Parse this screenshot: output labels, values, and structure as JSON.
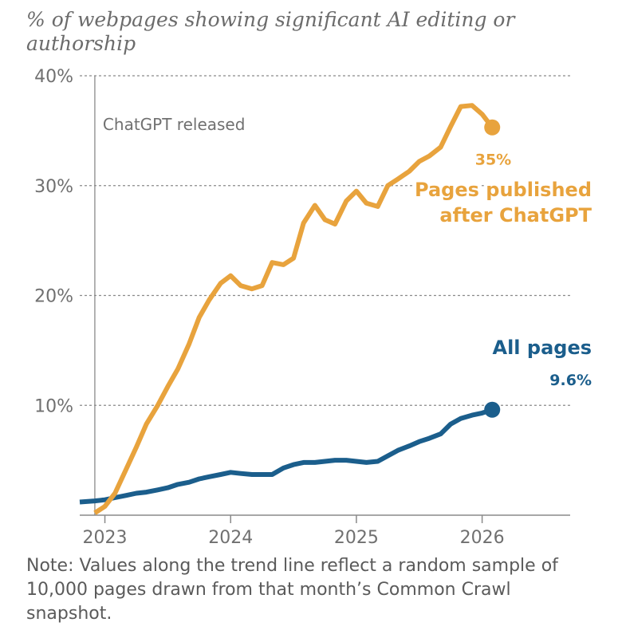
{
  "chart_data": {
    "type": "line",
    "title": "% of webpages showing significant AI editing or authorship",
    "note": "Note: Values along the trend line reflect a random sample of 10,000 pages drawn from that month’s Common Crawl snapshot.",
    "ylim": [
      0,
      40
    ],
    "y_ticks": [
      {
        "value": 10,
        "label": "10%"
      },
      {
        "value": 20,
        "label": "20%"
      },
      {
        "value": 30,
        "label": "30%"
      },
      {
        "value": 40,
        "label": "40%"
      }
    ],
    "xlim": [
      2022.8,
      2026.7
    ],
    "x_ticks": [
      {
        "value": 2023,
        "label": "2023"
      },
      {
        "value": 2024,
        "label": "2024"
      },
      {
        "value": 2025,
        "label": "2025"
      },
      {
        "value": 2026,
        "label": "2026"
      }
    ],
    "grid": true,
    "annotation": {
      "x": 2022.92,
      "label": "ChatGPT released"
    },
    "series": [
      {
        "name": "Pages published after ChatGPT",
        "color": "#E8A33D",
        "end_label": "35%",
        "points": [
          [
            2022.92,
            0.2
          ],
          [
            2023.0,
            0.8
          ],
          [
            2023.08,
            2.0
          ],
          [
            2023.17,
            4.2
          ],
          [
            2023.25,
            6.2
          ],
          [
            2023.33,
            8.3
          ],
          [
            2023.42,
            10.0
          ],
          [
            2023.5,
            11.7
          ],
          [
            2023.58,
            13.3
          ],
          [
            2023.67,
            15.6
          ],
          [
            2023.75,
            18.0
          ],
          [
            2023.83,
            19.6
          ],
          [
            2023.92,
            21.1
          ],
          [
            2024.0,
            21.8
          ],
          [
            2024.08,
            20.9
          ],
          [
            2024.17,
            20.6
          ],
          [
            2024.25,
            20.9
          ],
          [
            2024.33,
            23.0
          ],
          [
            2024.42,
            22.8
          ],
          [
            2024.5,
            23.4
          ],
          [
            2024.58,
            26.6
          ],
          [
            2024.67,
            28.2
          ],
          [
            2024.75,
            26.9
          ],
          [
            2024.83,
            26.5
          ],
          [
            2024.92,
            28.6
          ],
          [
            2025.0,
            29.5
          ],
          [
            2025.08,
            28.4
          ],
          [
            2025.17,
            28.1
          ],
          [
            2025.25,
            30.0
          ],
          [
            2025.33,
            30.6
          ],
          [
            2025.42,
            31.3
          ],
          [
            2025.5,
            32.2
          ],
          [
            2025.58,
            32.7
          ],
          [
            2025.67,
            33.5
          ],
          [
            2025.75,
            35.4
          ],
          [
            2025.83,
            37.2
          ],
          [
            2025.92,
            37.3
          ],
          [
            2026.0,
            36.5
          ],
          [
            2026.08,
            35.3
          ]
        ]
      },
      {
        "name": "All pages",
        "color": "#1B5E8C",
        "end_label": "9.6%",
        "points": [
          [
            2022.8,
            1.2
          ],
          [
            2022.92,
            1.3
          ],
          [
            2023.0,
            1.4
          ],
          [
            2023.08,
            1.6
          ],
          [
            2023.17,
            1.8
          ],
          [
            2023.25,
            2.0
          ],
          [
            2023.33,
            2.1
          ],
          [
            2023.42,
            2.3
          ],
          [
            2023.5,
            2.5
          ],
          [
            2023.58,
            2.8
          ],
          [
            2023.67,
            3.0
          ],
          [
            2023.75,
            3.3
          ],
          [
            2023.83,
            3.5
          ],
          [
            2023.92,
            3.7
          ],
          [
            2024.0,
            3.9
          ],
          [
            2024.08,
            3.8
          ],
          [
            2024.17,
            3.7
          ],
          [
            2024.25,
            3.7
          ],
          [
            2024.33,
            3.7
          ],
          [
            2024.42,
            4.3
          ],
          [
            2024.5,
            4.6
          ],
          [
            2024.58,
            4.8
          ],
          [
            2024.67,
            4.8
          ],
          [
            2024.75,
            4.9
          ],
          [
            2024.83,
            5.0
          ],
          [
            2024.92,
            5.0
          ],
          [
            2025.0,
            4.9
          ],
          [
            2025.08,
            4.8
          ],
          [
            2025.17,
            4.9
          ],
          [
            2025.25,
            5.4
          ],
          [
            2025.33,
            5.9
          ],
          [
            2025.42,
            6.3
          ],
          [
            2025.5,
            6.7
          ],
          [
            2025.58,
            7.0
          ],
          [
            2025.67,
            7.4
          ],
          [
            2025.75,
            8.3
          ],
          [
            2025.83,
            8.8
          ],
          [
            2025.92,
            9.1
          ],
          [
            2026.0,
            9.3
          ],
          [
            2026.08,
            9.6
          ]
        ]
      }
    ]
  }
}
